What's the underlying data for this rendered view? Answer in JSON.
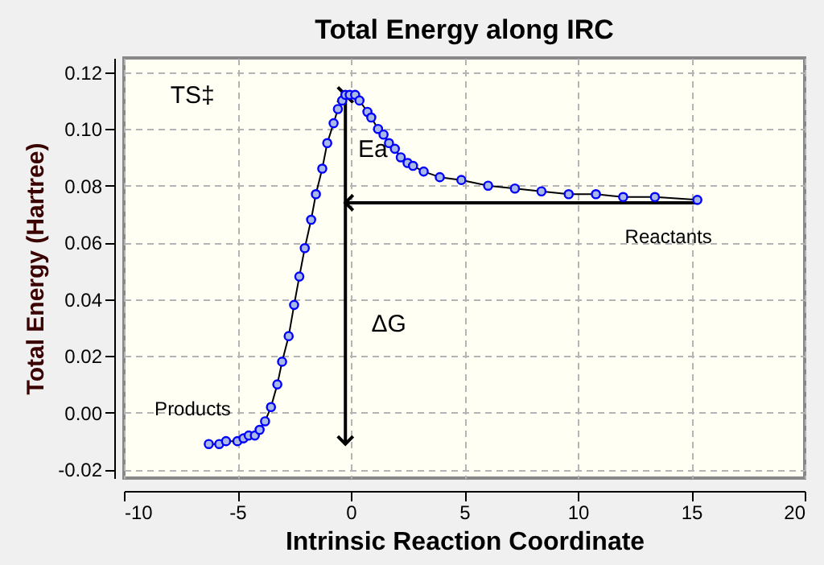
{
  "chart_data": {
    "type": "line",
    "title": "Total Energy along IRC",
    "xlabel": "Intrinsic Reaction Coordinate",
    "ylabel": "Total Energy (Hartree)",
    "xlim": [
      -10,
      20
    ],
    "xticks": [
      -10,
      -5,
      0,
      5,
      10,
      15,
      20
    ],
    "ylim": [
      -0.023,
      0.125
    ],
    "yticks": [
      {
        "value": -0.02,
        "label": "-0.02"
      },
      {
        "value": 0,
        "label": "0.00"
      },
      {
        "value": 0.02,
        "label": "0.02"
      },
      {
        "value": 0.04,
        "label": "0.04"
      },
      {
        "value": 0.06,
        "label": "0.06"
      },
      {
        "value": 0.08,
        "label": "0.08"
      },
      {
        "value": 0.1,
        "label": "0.10"
      },
      {
        "value": 0.12,
        "label": "0.12"
      }
    ],
    "grid": true,
    "marker": "circle",
    "series": [
      {
        "color": "#0000ff",
        "x": [
          -6.26,
          -5.8,
          -5.5,
          -5.0,
          -4.73,
          -4.5,
          -4.23,
          -4.02,
          -3.78,
          -3.52,
          -3.24,
          -3.03,
          -2.74,
          -2.5,
          -2.27,
          -2.03,
          -1.75,
          -1.54,
          -1.26,
          -1.04,
          -0.76,
          -0.57,
          -0.38,
          -0.24,
          -0.05,
          0.19,
          0.38,
          0.73,
          0.9,
          1.2,
          1.44,
          1.68,
          1.94,
          2.2,
          2.5,
          2.74,
          3.21,
          3.92,
          4.87,
          6.05,
          7.23,
          8.4,
          9.6,
          10.8,
          12.0,
          13.4,
          15.27
        ],
        "values": [
          -0.011,
          -0.011,
          -0.01,
          -0.01,
          -0.009,
          -0.008,
          -0.008,
          -0.006,
          -0.003,
          0.002,
          0.01,
          0.018,
          0.027,
          0.038,
          0.048,
          0.058,
          0.068,
          0.077,
          0.086,
          0.095,
          0.102,
          0.107,
          0.11,
          0.112,
          0.112,
          0.112,
          0.11,
          0.106,
          0.104,
          0.1,
          0.098,
          0.095,
          0.093,
          0.09,
          0.088,
          0.087,
          0.085,
          0.083,
          0.082,
          0.08,
          0.079,
          0.078,
          0.077,
          0.077,
          0.076,
          0.076,
          0.075
        ]
      }
    ],
    "annotations": [
      "TS‡",
      "Ea",
      "ΔG",
      {
        "text": "Products",
        "x": -6.26,
        "y": -0.011
      },
      {
        "text": "Reactants",
        "x": 15.2,
        "y": 0.074
      }
    ]
  }
}
